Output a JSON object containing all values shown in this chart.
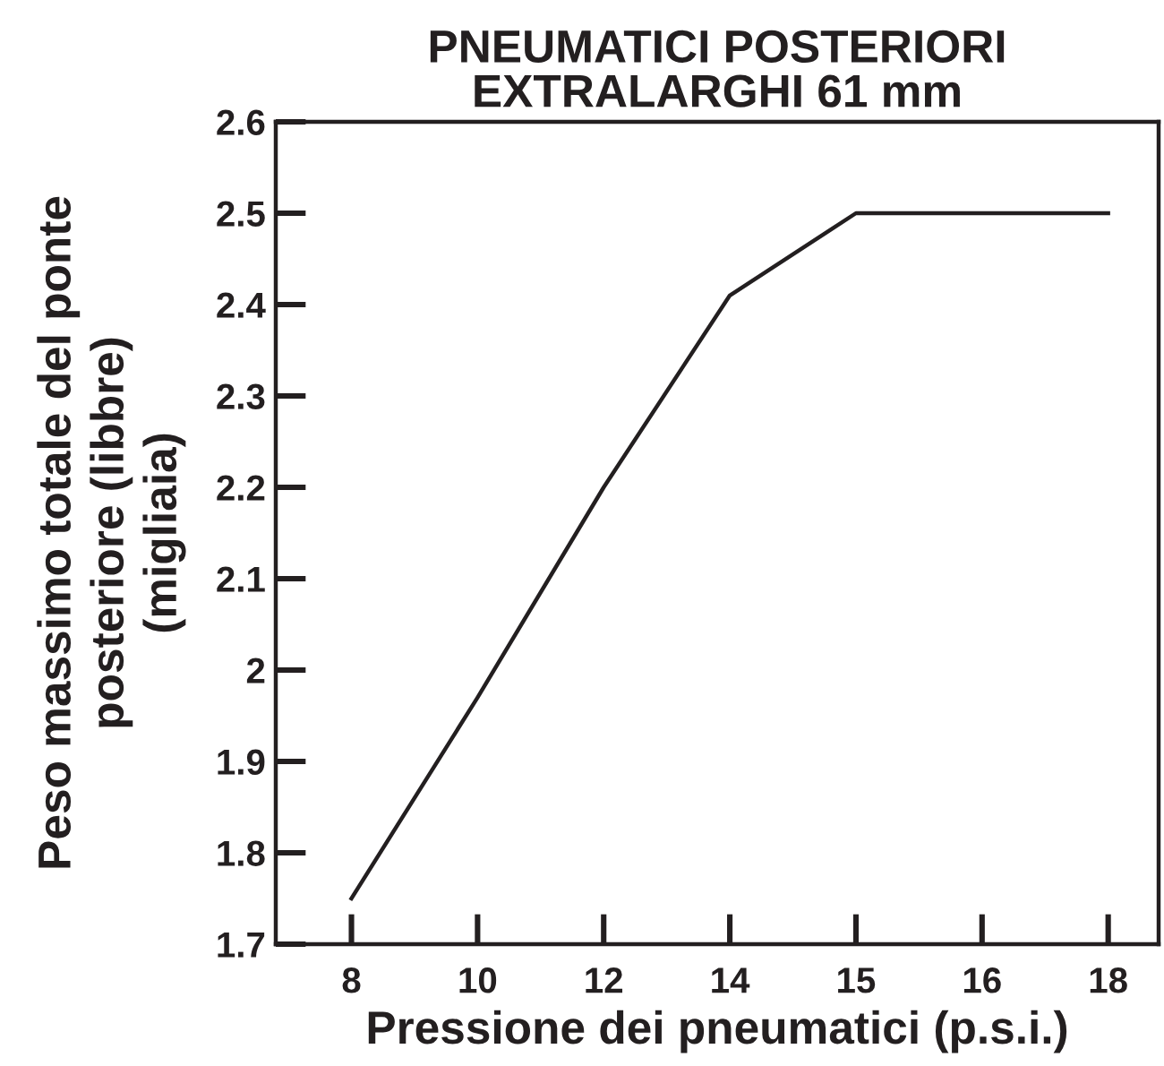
{
  "chart_data": {
    "type": "line",
    "title": "PNEUMATICI POSTERIORI\nEXTRALARGHI 61 mm",
    "xlabel": "Pressione dei pneumatici (p.s.i.)",
    "ylabel": "Peso massimo totale del ponte\nposteriore (libbre)\n(migliaia)",
    "categories": [
      "8",
      "10",
      "12",
      "14",
      "15",
      "16",
      "18"
    ],
    "series": [
      {
        "color": "#231f20",
        "values": [
          1.75,
          1.97,
          2.2,
          2.41,
          2.5,
          2.5,
          2.5
        ]
      }
    ],
    "ylim": [
      1.7,
      2.6
    ],
    "yticks": [
      1.7,
      1.8,
      1.9,
      2,
      2.1,
      2.2,
      2.3,
      2.4,
      2.5,
      2.6
    ],
    "marker": "none",
    "line_style": "solid",
    "grid": false
  }
}
